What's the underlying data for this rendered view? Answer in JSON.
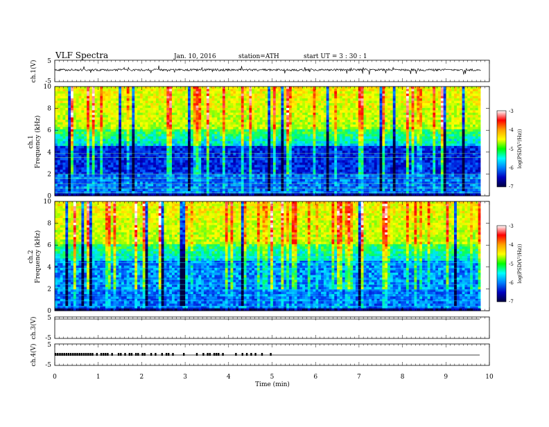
{
  "header": {
    "title": "VLF  Spectra",
    "date": "Jan. 10, 2016",
    "station": "station=ATH",
    "start": "start  UT  =   3   : 30 : 1"
  },
  "panels": {
    "ch1_wave": {
      "ylabel": "ch.1(V)",
      "yticks": [
        "5",
        "-5"
      ]
    },
    "ch1_spec": {
      "ylabel_top": "ch.1",
      "ylabel": "Frequency  (kHz)",
      "yticks": [
        "10",
        "8",
        "6",
        "4",
        "2",
        "0"
      ]
    },
    "ch2_spec": {
      "ylabel_top": "ch.2",
      "ylabel": "Frequency  (kHz)",
      "yticks": [
        "10",
        "8",
        "6",
        "4",
        "2",
        "0"
      ]
    },
    "ch3_wave": {
      "ylabel": "ch.3(V)",
      "yticks": [
        "5",
        "-5"
      ]
    },
    "ch4_wave": {
      "ylabel": "ch.4(V)",
      "yticks": [
        "5",
        "-5"
      ]
    }
  },
  "colorbar": {
    "label": "log(PSD(V²/Hz))",
    "ticks": [
      "-3",
      "-4",
      "-5",
      "-6",
      "-7"
    ],
    "colors": [
      "#ffffff",
      "#ff0000",
      "#ffa000",
      "#ffff00",
      "#00ff00",
      "#00ffff",
      "#0080ff",
      "#0000c0",
      "#000040"
    ]
  },
  "chart_data": {
    "type": "heatmap",
    "title": "VLF  Spectra",
    "xlabel": "Time  (min)",
    "xticks": [
      "0",
      "1",
      "2",
      "3",
      "4",
      "5",
      "6",
      "7",
      "8",
      "9",
      "10"
    ],
    "xlim": [
      0,
      10
    ],
    "data_end_min": 9.8,
    "ylim_freq_khz": [
      0,
      10
    ],
    "ylim_voltage_v": [
      -5,
      5
    ],
    "zlim_log_psd": [
      -7,
      -3
    ],
    "ch4_pulse_times_min": [
      0.0,
      0.05,
      0.1,
      0.15,
      0.2,
      0.25,
      0.3,
      0.35,
      0.4,
      0.45,
      0.5,
      0.55,
      0.6,
      0.65,
      0.7,
      0.75,
      0.8,
      0.85,
      0.95,
      1.05,
      1.1,
      1.15,
      1.2,
      1.3,
      1.45,
      1.5,
      1.6,
      1.7,
      1.75,
      1.85,
      1.9,
      2.0,
      2.05,
      2.2,
      2.3,
      2.45,
      2.55,
      2.6,
      2.7,
      2.95,
      3.25,
      3.4,
      3.5,
      3.55,
      3.65,
      3.7,
      3.75,
      3.85,
      4.15,
      4.3,
      4.4,
      4.5,
      4.6,
      4.75,
      4.95
    ]
  }
}
